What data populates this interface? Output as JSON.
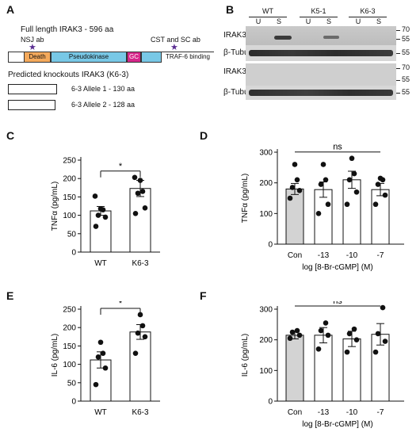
{
  "panelA": {
    "letter": "A",
    "full_length": "Full length IRAK3 - 596 aa",
    "nsj": "NSJ ab",
    "cst": "CST and SC ab",
    "domains": [
      {
        "label": "Death",
        "color": "#f4a95b"
      },
      {
        "label": "Pseudokinase",
        "color": "#78c8e6"
      },
      {
        "label": "GC",
        "color": "#d6268a"
      },
      {
        "label": "",
        "color": "#78c8e6"
      },
      {
        "label": "TRAF-6 binding",
        "color": "#ffffff"
      }
    ],
    "predicted": "Predicted knockouts IRAK3 (K6-3)",
    "alleles": [
      "6-3 Allele 1 - 130 aa",
      "6-3 Allele 2 - 128 aa"
    ],
    "star_color": "#5a2d91"
  },
  "panelB": {
    "letter": "B",
    "groups": [
      "WT",
      "K5-1",
      "K6-3"
    ],
    "lanes": [
      "U",
      "S",
      "U",
      "S",
      "U",
      "S"
    ],
    "blots": [
      "IRAK3",
      "β-Tubulin",
      "IRAK3",
      "β-Tubulin"
    ],
    "markers": [
      "70",
      "55",
      "55",
      "70",
      "55",
      "55"
    ]
  },
  "chart_data": [
    {
      "panel": "C",
      "type": "bar",
      "categories": [
        "WT",
        "K6-3"
      ],
      "values": [
        112,
        173
      ],
      "errors": [
        12,
        22
      ],
      "points": [
        [
          70,
          95,
          100,
          115,
          118,
          152
        ],
        [
          105,
          120,
          160,
          165,
          195,
          203
        ]
      ],
      "ylabel": "TNFα (pg/mL)",
      "ylim": [
        0,
        250
      ],
      "yticks": [
        "0",
        "50",
        "100",
        "150",
        "200",
        "250"
      ],
      "significance": "*",
      "fill": [
        "#ffffff",
        "#ffffff"
      ]
    },
    {
      "panel": "D",
      "type": "bar",
      "categories": [
        "Con",
        "-13",
        "-10",
        "-7"
      ],
      "values": [
        180,
        178,
        210,
        178
      ],
      "errors": [
        18,
        25,
        28,
        20
      ],
      "points": [
        [
          150,
          175,
          185,
          210,
          260
        ],
        [
          100,
          130,
          195,
          210,
          260
        ],
        [
          130,
          170,
          210,
          230,
          280
        ],
        [
          130,
          160,
          195,
          210,
          215
        ]
      ],
      "ylabel": "TNFα (pg/mL)",
      "xlabel": "log [8-Br-cGMP] (M)",
      "ylim": [
        0,
        300
      ],
      "yticks": [
        "0",
        "100",
        "200",
        "300"
      ],
      "significance": "ns",
      "fill": [
        "#d3d3d3",
        "#ffffff",
        "#ffffff",
        "#ffffff"
      ]
    },
    {
      "panel": "E",
      "type": "bar",
      "categories": [
        "WT",
        "K6-3"
      ],
      "values": [
        112,
        188
      ],
      "errors": [
        22,
        20
      ],
      "points": [
        [
          45,
          90,
          120,
          130,
          160
        ],
        [
          130,
          175,
          185,
          205,
          235
        ]
      ],
      "ylabel": "IL-6 (pg/mL)",
      "ylim": [
        0,
        250
      ],
      "yticks": [
        "0",
        "50",
        "100",
        "150",
        "200",
        "250"
      ],
      "significance": "*",
      "fill": [
        "#ffffff",
        "#ffffff"
      ]
    },
    {
      "panel": "F",
      "type": "bar",
      "categories": [
        "Con",
        "-13",
        "-10",
        "-7"
      ],
      "values": [
        215,
        215,
        203,
        218
      ],
      "errors": [
        12,
        25,
        25,
        35
      ],
      "points": [
        [
          205,
          215,
          225,
          230
        ],
        [
          170,
          215,
          230,
          255
        ],
        [
          160,
          200,
          220,
          235
        ],
        [
          160,
          195,
          220,
          305
        ]
      ],
      "ylabel": "IL-6 (pg/mL)",
      "xlabel": "log [8-Br-cGMP] (M)",
      "ylim": [
        0,
        300
      ],
      "yticks": [
        "0",
        "100",
        "200",
        "300"
      ],
      "significance": "ns",
      "fill": [
        "#d3d3d3",
        "#ffffff",
        "#ffffff",
        "#ffffff"
      ]
    }
  ]
}
